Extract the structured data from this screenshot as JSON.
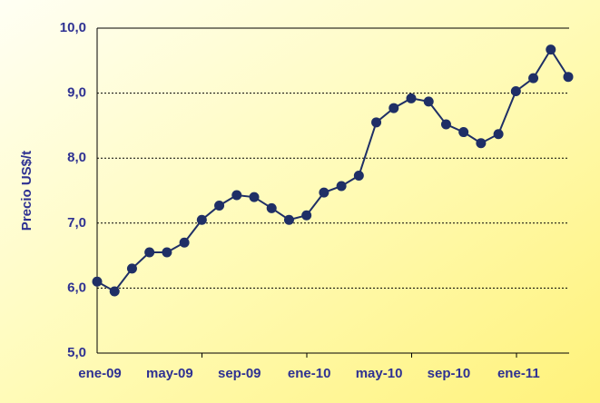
{
  "chart_data": {
    "type": "line",
    "y_label": "Precio US$/t",
    "categories": [
      "ene-09",
      null,
      null,
      null,
      "may-09",
      null,
      null,
      null,
      "sep-09",
      null,
      null,
      null,
      "ene-10",
      null,
      null,
      null,
      "may-10",
      null,
      null,
      null,
      "sep-10",
      null,
      null,
      null,
      "ene-11",
      null,
      null,
      null
    ],
    "values": [
      6.1,
      5.95,
      6.3,
      6.55,
      6.55,
      6.7,
      7.05,
      7.27,
      7.43,
      7.4,
      7.23,
      7.05,
      7.12,
      7.47,
      7.57,
      7.73,
      8.55,
      8.77,
      8.92,
      8.87,
      8.52,
      8.4,
      8.23,
      8.37,
      9.03,
      9.23,
      9.67,
      9.25
    ],
    "color": "#1f2f66",
    "ylim": [
      5,
      10
    ],
    "yticks": [
      {
        "value": 5,
        "label": "5,0"
      },
      {
        "value": 6,
        "label": "6,0"
      },
      {
        "value": 7,
        "label": "7,0"
      },
      {
        "value": 8,
        "label": "8,0"
      },
      {
        "value": 9,
        "label": "9,0"
      },
      {
        "value": 10,
        "label": "10,0"
      }
    ],
    "grid": true
  }
}
